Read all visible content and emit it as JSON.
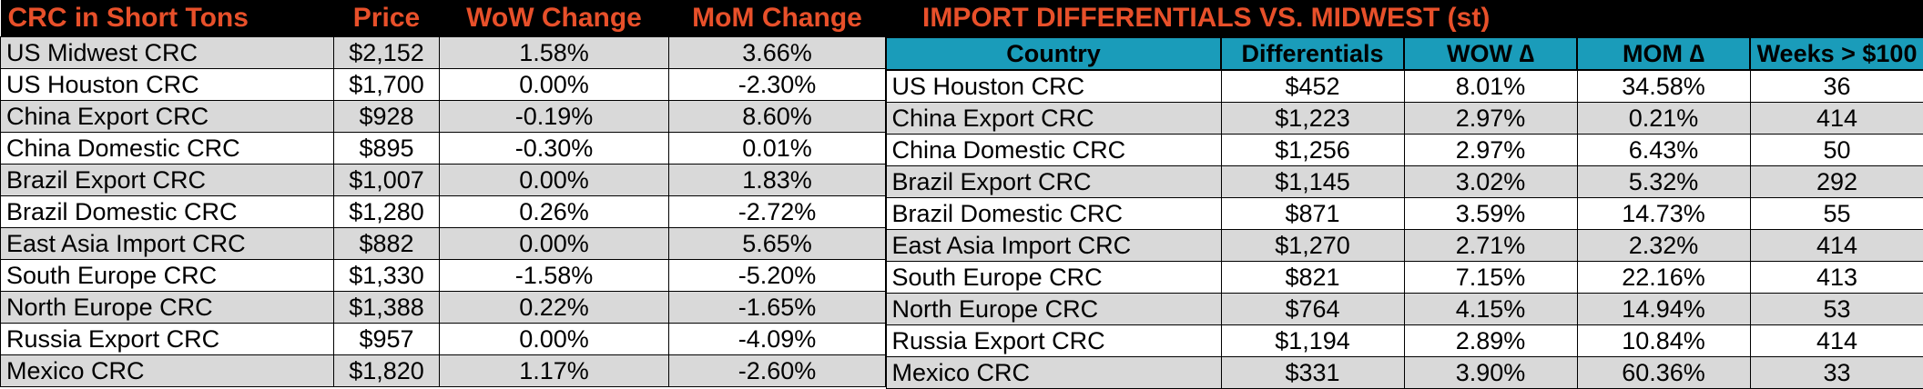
{
  "colors": {
    "title_bg": "#000000",
    "title_text": "#e8502a",
    "subheader_bg": "#1a9cba",
    "shaded_row": "#d9d9d9",
    "plain_row": "#ffffff"
  },
  "left_table": {
    "headers": [
      "CRC in Short Tons",
      "Price",
      "WoW Change",
      "MoM Change"
    ],
    "rows": [
      [
        "US Midwest CRC",
        "$2,152",
        "1.58%",
        "3.66%"
      ],
      [
        "US Houston CRC",
        "$1,700",
        "0.00%",
        "-2.30%"
      ],
      [
        "China Export CRC",
        "$928",
        "-0.19%",
        "8.60%"
      ],
      [
        "China Domestic CRC",
        "$895",
        "-0.30%",
        "0.01%"
      ],
      [
        "Brazil Export CRC",
        "$1,007",
        "0.00%",
        "1.83%"
      ],
      [
        "Brazil Domestic CRC",
        "$1,280",
        "0.26%",
        "-2.72%"
      ],
      [
        "East Asia Import CRC",
        "$882",
        "0.00%",
        "5.65%"
      ],
      [
        "South Europe CRC",
        "$1,330",
        "-1.58%",
        "-5.20%"
      ],
      [
        "North Europe CRC",
        "$1,388",
        "0.22%",
        "-1.65%"
      ],
      [
        "Russia Export CRC",
        "$957",
        "0.00%",
        "-4.09%"
      ],
      [
        "Mexico CRC",
        "$1,820",
        "1.17%",
        "-2.60%"
      ]
    ]
  },
  "right_table": {
    "title": "IMPORT DIFFERENTIALS VS. MIDWEST (st)",
    "headers": [
      "Country",
      "Differentials",
      "WOW ∆",
      "MOM ∆",
      "Weeks > $100"
    ],
    "rows": [
      [
        "US Houston CRC",
        "$452",
        "8.01%",
        "34.58%",
        "36"
      ],
      [
        "China Export CRC",
        "$1,223",
        "2.97%",
        "0.21%",
        "414"
      ],
      [
        "China Domestic CRC",
        "$1,256",
        "2.97%",
        "6.43%",
        "50"
      ],
      [
        "Brazil Export CRC",
        "$1,145",
        "3.02%",
        "5.32%",
        "292"
      ],
      [
        "Brazil Domestic CRC",
        "$871",
        "3.59%",
        "14.73%",
        "55"
      ],
      [
        "East Asia Import CRC",
        "$1,270",
        "2.71%",
        "2.32%",
        "414"
      ],
      [
        "South Europe CRC",
        "$821",
        "7.15%",
        "22.16%",
        "413"
      ],
      [
        "North Europe CRC",
        "$764",
        "4.15%",
        "14.94%",
        "53"
      ],
      [
        "Russia Export CRC",
        "$1,194",
        "2.89%",
        "10.84%",
        "414"
      ],
      [
        "Mexico CRC",
        "$331",
        "3.90%",
        "60.36%",
        "33"
      ]
    ]
  }
}
